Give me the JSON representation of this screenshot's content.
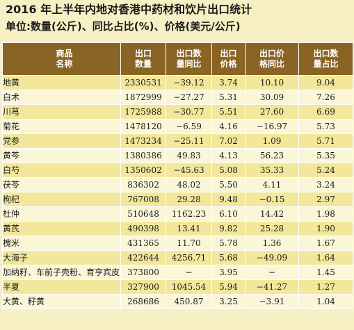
{
  "title": "2016 年上半年内地对香港中药材和饮片出口统计",
  "unit": "单位:数量(公斤)、同比占比(%)、价格(美元/公斤)",
  "columns": [
    {
      "l1": "商品",
      "l2": "名称"
    },
    {
      "l1": "出口",
      "l2": "数量"
    },
    {
      "l1": "出口数",
      "l2": "量同比"
    },
    {
      "l1": "出口",
      "l2": "价格"
    },
    {
      "l1": "出口价",
      "l2": "格同比"
    },
    {
      "l1": "出口数",
      "l2": "量占比"
    }
  ],
  "rows": [
    {
      "name": "地黄",
      "qty": "2330531",
      "qty_yoy": "−39.12",
      "price": "3.74",
      "price_yoy": "10.10",
      "share": "9.04"
    },
    {
      "name": "白术",
      "qty": "1872999",
      "qty_yoy": "−27.27",
      "price": "5.31",
      "price_yoy": "30.09",
      "share": "7.26"
    },
    {
      "name": "川芎",
      "qty": "1725988",
      "qty_yoy": "−30.77",
      "price": "5.51",
      "price_yoy": "27.60",
      "share": "6.69"
    },
    {
      "name": "菊花",
      "qty": "1478120",
      "qty_yoy": "−6.59",
      "price": "4.16",
      "price_yoy": "−16.97",
      "share": "5.73"
    },
    {
      "name": "党参",
      "qty": "1473234",
      "qty_yoy": "−25.11",
      "price": "7.02",
      "price_yoy": "1.09",
      "share": "5.71"
    },
    {
      "name": "黄芩",
      "qty": "1380386",
      "qty_yoy": "49.83",
      "price": "4.13",
      "price_yoy": "56.23",
      "share": "5.35"
    },
    {
      "name": "白芍",
      "qty": "1350602",
      "qty_yoy": "−45.63",
      "price": "5.08",
      "price_yoy": "35.33",
      "share": "5.24"
    },
    {
      "name": "茯苓",
      "qty": "836302",
      "qty_yoy": "48.02",
      "price": "5.50",
      "price_yoy": "4.11",
      "share": "3.24"
    },
    {
      "name": "枸杞",
      "qty": "767008",
      "qty_yoy": "29.28",
      "price": "9.48",
      "price_yoy": "−0.15",
      "share": "2.97"
    },
    {
      "name": "杜仲",
      "qty": "510648",
      "qty_yoy": "1162.23",
      "price": "6.10",
      "price_yoy": "14.42",
      "share": "1.98"
    },
    {
      "name": "黄芪",
      "qty": "490398",
      "qty_yoy": "13.41",
      "price": "9.82",
      "price_yoy": "25.28",
      "share": "1.90"
    },
    {
      "name": "槐米",
      "qty": "431365",
      "qty_yoy": "11.70",
      "price": "5.78",
      "price_yoy": "1.36",
      "share": "1.67"
    },
    {
      "name": "大海子",
      "qty": "422644",
      "qty_yoy": "4256.71",
      "price": "5.68",
      "price_yoy": "−49.09",
      "share": "1.64"
    },
    {
      "name": "加纳籽、车前子壳粉、育亨宾皮",
      "qty": "373800",
      "qty_yoy": "−",
      "price": "3.95",
      "price_yoy": "−",
      "share": "1.45"
    },
    {
      "name": "半夏",
      "qty": "327900",
      "qty_yoy": "1045.54",
      "price": "5.94",
      "price_yoy": "−41.27",
      "share": "1.27"
    },
    {
      "name": "大黄、籽黄",
      "qty": "268686",
      "qty_yoy": "450.87",
      "price": "3.25",
      "price_yoy": "−3.91",
      "share": "1.04"
    }
  ]
}
